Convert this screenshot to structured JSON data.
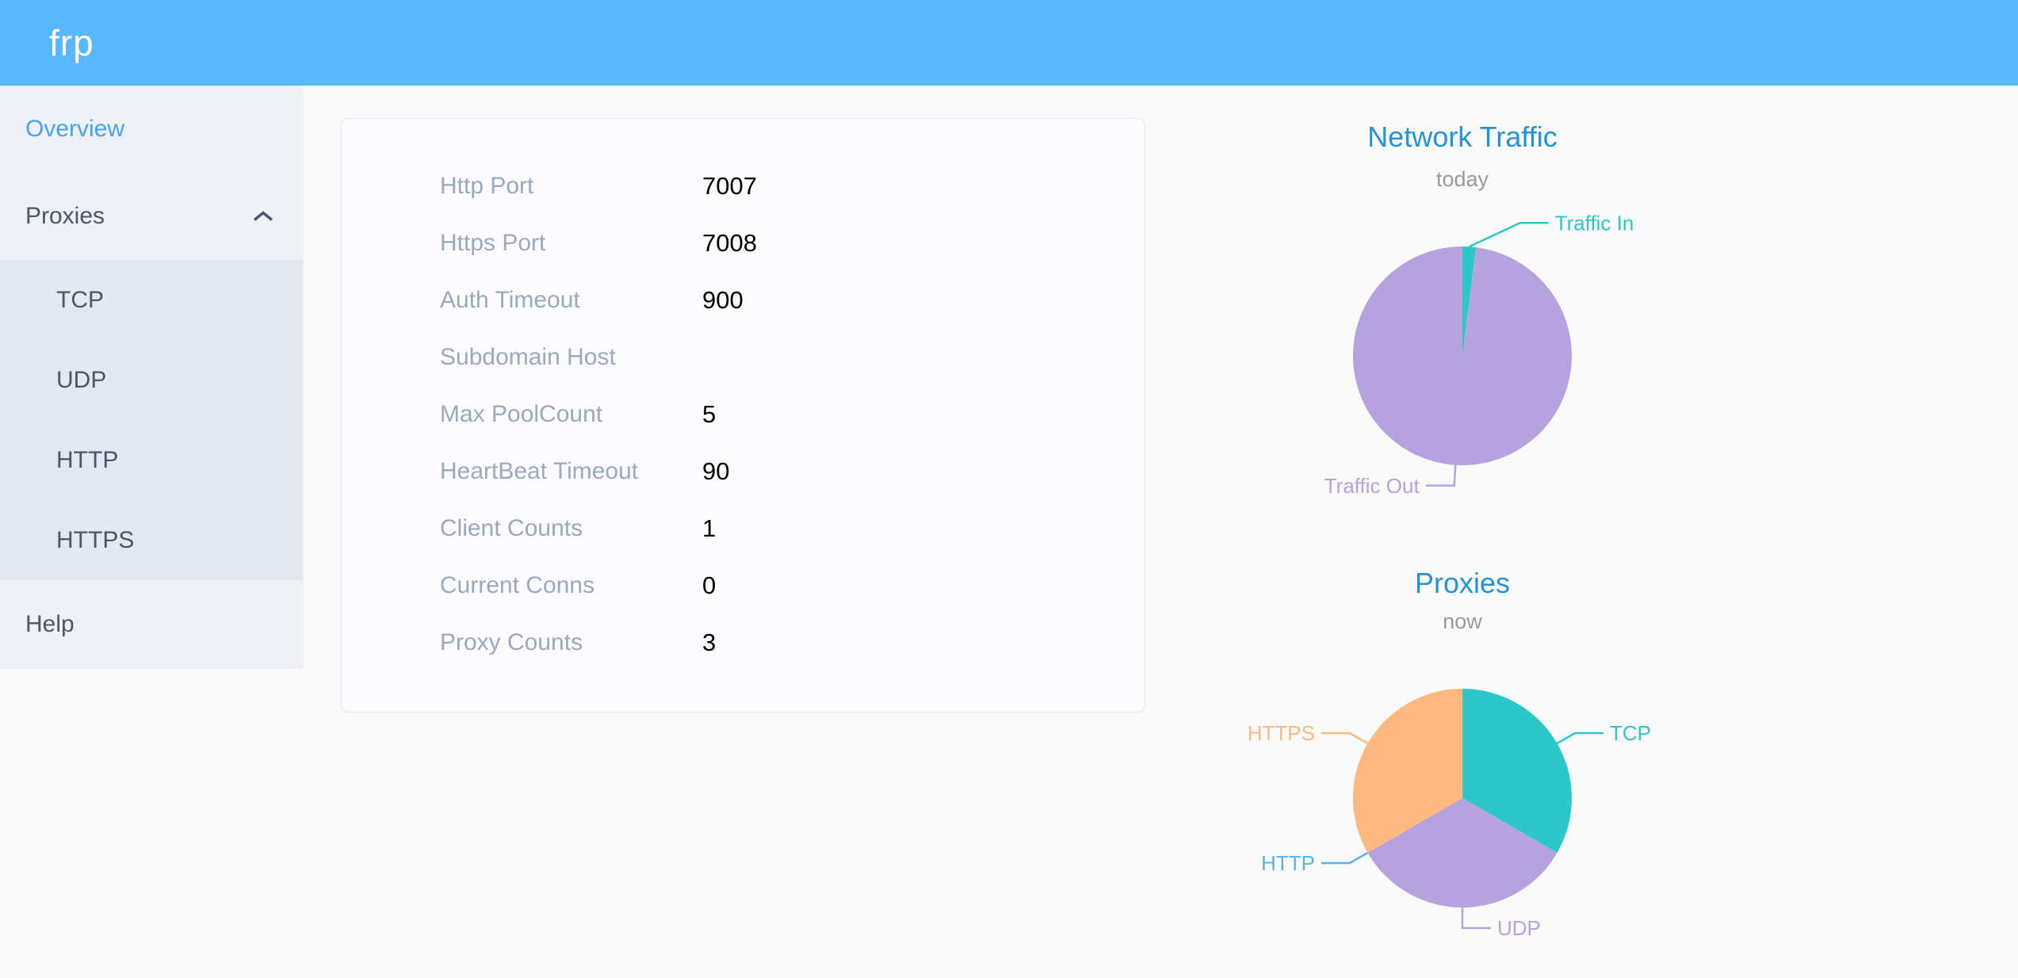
{
  "header": {
    "brand": "frp"
  },
  "sidebar": {
    "items": [
      {
        "id": "overview",
        "label": "Overview",
        "active": true
      },
      {
        "id": "proxies",
        "label": "Proxies",
        "expanded": true,
        "children": [
          {
            "id": "tcp",
            "label": "TCP"
          },
          {
            "id": "udp",
            "label": "UDP"
          },
          {
            "id": "http",
            "label": "HTTP"
          },
          {
            "id": "https",
            "label": "HTTPS"
          }
        ]
      },
      {
        "id": "help",
        "label": "Help"
      }
    ]
  },
  "overview": {
    "rows": [
      {
        "label": "Http Port",
        "value": "7007"
      },
      {
        "label": "Https Port",
        "value": "7008"
      },
      {
        "label": "Auth Timeout",
        "value": "900"
      },
      {
        "label": "Subdomain Host",
        "value": ""
      },
      {
        "label": "Max PoolCount",
        "value": "5"
      },
      {
        "label": "HeartBeat Timeout",
        "value": "90"
      },
      {
        "label": "Client Counts",
        "value": "1"
      },
      {
        "label": "Current Conns",
        "value": "0"
      },
      {
        "label": "Proxy Counts",
        "value": "3"
      }
    ]
  },
  "chart_data": [
    {
      "type": "pie",
      "title": "Network Traffic",
      "subtitle": "today",
      "labels_position": "outside",
      "legend": "none",
      "series": [
        {
          "name": "Traffic In",
          "percent": 2,
          "color": "#2ec7c9"
        },
        {
          "name": "Traffic Out",
          "percent": 98,
          "color": "#b6a2de"
        }
      ]
    },
    {
      "type": "pie",
      "title": "Proxies",
      "subtitle": "now",
      "labels_position": "outside",
      "legend": "none",
      "series": [
        {
          "name": "TCP",
          "value": 1,
          "color": "#2ec7c9"
        },
        {
          "name": "UDP",
          "value": 1,
          "color": "#b6a2de"
        },
        {
          "name": "HTTP",
          "value": 0,
          "color": "#5ab1ef"
        },
        {
          "name": "HTTPS",
          "value": 1,
          "color": "#ffb980"
        }
      ]
    }
  ],
  "colors": {
    "header_bg": "#58b7ff",
    "sidebar_bg": "#eef1f6",
    "submenu_bg": "#e4e8f1",
    "menu_text": "#48576a",
    "menu_active": "#45a2f8",
    "chart_title": "#2492d9",
    "card_label": "#99a9bf",
    "card_value": "#000000"
  }
}
